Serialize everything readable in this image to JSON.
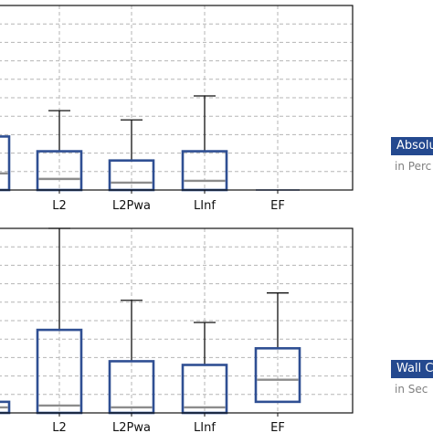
{
  "colors": {
    "box": "#2f4f93",
    "median": "#8c8c8c",
    "whisker": "#111111",
    "grid": "#b5b5b5",
    "frame": "#111111",
    "tag_bg": "#24498f",
    "tag_text": "#ffffff",
    "sub_text": "#808080"
  },
  "chart_data": [
    {
      "type": "box",
      "categories": [
        "",
        "L2",
        "L2Pwa",
        "LInf",
        "EF"
      ],
      "grid": true,
      "ylim": [
        0,
        10
      ],
      "boxes": [
        {
          "category": "",
          "min": 0,
          "q1": 0,
          "median": 0.9,
          "q3": 2.9,
          "max": 2.9
        },
        {
          "category": "L2",
          "min": 0,
          "q1": 0,
          "median": 0.6,
          "q3": 2.1,
          "max": 4.3
        },
        {
          "category": "L2Pwa",
          "min": 0,
          "q1": 0,
          "median": 0.4,
          "q3": 1.6,
          "max": 3.8
        },
        {
          "category": "LInf",
          "min": 0,
          "q1": 0,
          "median": 0.5,
          "q3": 2.1,
          "max": 5.1
        },
        {
          "category": "EF",
          "min": 0,
          "q1": 0,
          "median": 0,
          "q3": 0,
          "max": 0
        }
      ],
      "side_label": "Absolu",
      "side_sublabel": "in Perc"
    },
    {
      "type": "box",
      "categories": [
        "",
        "L2",
        "L2Pwa",
        "LInf",
        "EF"
      ],
      "grid": true,
      "ylim": [
        0,
        10
      ],
      "boxes": [
        {
          "category": "",
          "min": 0,
          "q1": 0,
          "median": 0.3,
          "q3": 0.6,
          "max": 0.6
        },
        {
          "category": "L2",
          "min": 0,
          "q1": 0,
          "median": 0.4,
          "q3": 4.5,
          "max": 10
        },
        {
          "category": "L2Pwa",
          "min": 0,
          "q1": 0,
          "median": 0.3,
          "q3": 2.8,
          "max": 6.1
        },
        {
          "category": "LInf",
          "min": 0,
          "q1": 0,
          "median": 0.3,
          "q3": 2.6,
          "max": 4.9
        },
        {
          "category": "EF",
          "min": 0,
          "q1": 0.6,
          "median": 1.8,
          "q3": 3.5,
          "max": 6.5
        }
      ],
      "side_label": "Wall C",
      "side_sublabel": "in Sec"
    }
  ]
}
